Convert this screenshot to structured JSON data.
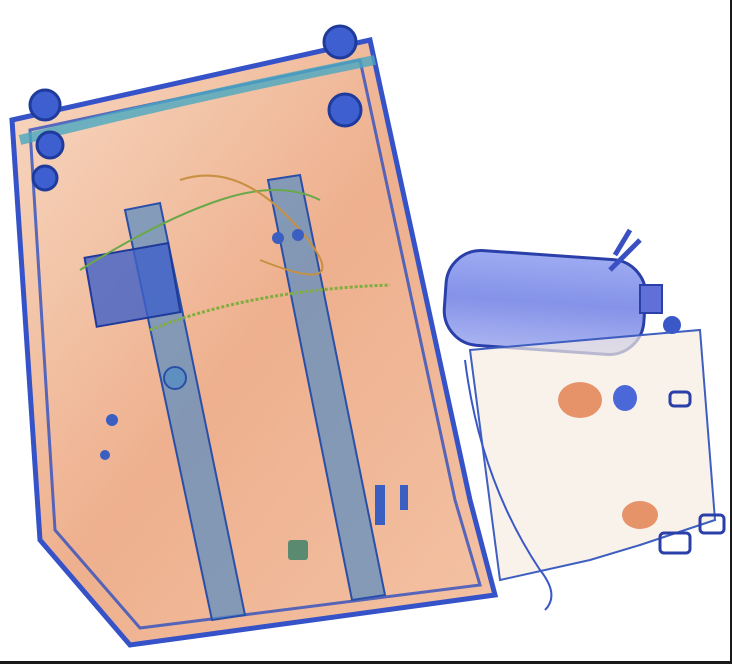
{
  "scan": {
    "palette": {
      "organic": "#e8956a",
      "organic_light": "#f4c7a6",
      "mixed": "#5fb35a",
      "metal": "#3f5fd6",
      "metal_dark": "#2a3fa8",
      "background": "#ffffff"
    },
    "objects": [
      {
        "name": "suitcase",
        "icon": "suitcase-icon"
      },
      {
        "name": "bottle",
        "icon": "bottle-icon"
      },
      {
        "name": "small-bag",
        "icon": "bag-icon"
      }
    ]
  }
}
